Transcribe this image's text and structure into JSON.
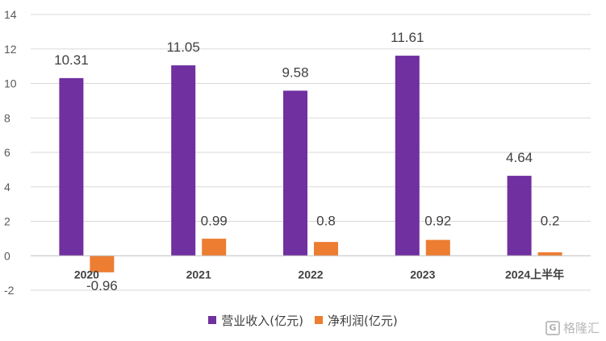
{
  "chart_data": {
    "type": "bar",
    "title": "",
    "xlabel": "",
    "ylabel": "",
    "categories": [
      "2020",
      "2021",
      "2022",
      "2023",
      "2024上半年"
    ],
    "series": [
      {
        "name": "营业收入(亿元)",
        "color": "#7030a0",
        "values": [
          10.31,
          11.05,
          9.58,
          11.61,
          4.64
        ],
        "labels": [
          "10.31",
          "11.05",
          "9.58",
          "11.61",
          "4.64"
        ]
      },
      {
        "name": "净利润(亿元)",
        "color": "#ed7d31",
        "values": [
          -0.96,
          0.99,
          0.8,
          0.92,
          0.2
        ],
        "labels": [
          "-0.96",
          "0.99",
          "0.8",
          "0.92",
          "0.2"
        ]
      }
    ],
    "ylim": [
      -2,
      14
    ],
    "yticks": [
      -2,
      0,
      2,
      4,
      6,
      8,
      10,
      12,
      14
    ],
    "grid": true,
    "legend_position": "bottom"
  },
  "legend": {
    "revenue_label": "营业收入(亿元)",
    "profit_label": "净利润(亿元)"
  },
  "watermark": {
    "logo_text": "G",
    "text": "格隆汇"
  }
}
